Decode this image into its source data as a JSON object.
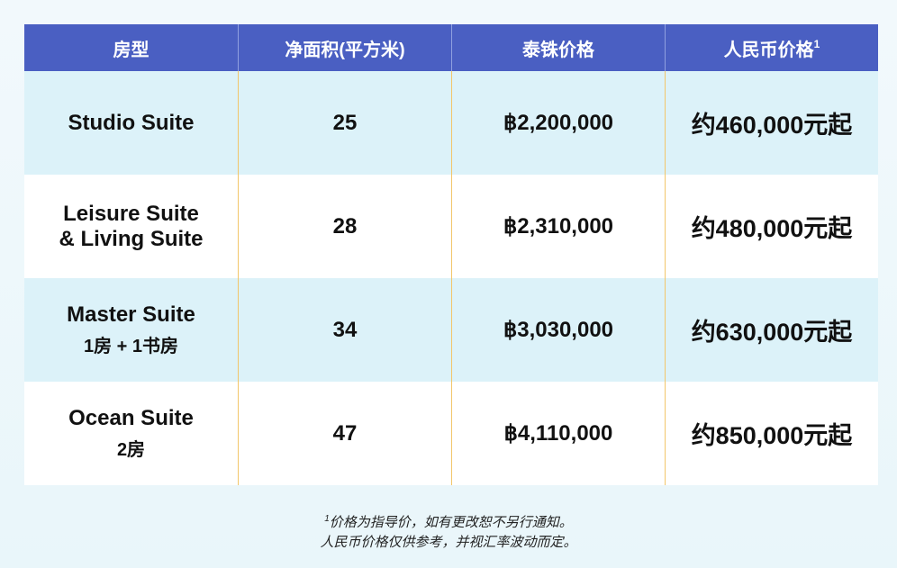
{
  "table": {
    "header": [
      {
        "text": "房型"
      },
      {
        "text": "净面积(平方米)"
      },
      {
        "text": "泰铢价格"
      },
      {
        "text": "人民币价格",
        "note": "1"
      }
    ],
    "rows": [
      [
        [
          "Studio Suite"
        ],
        "25",
        "฿2,200,000",
        "约460,000元起"
      ],
      [
        [
          "Leisure Suite",
          "& Living Suite"
        ],
        "28",
        "฿2,310,000",
        "约480,000元起"
      ],
      [
        [
          "Master Suite",
          "1房 + 1书房"
        ],
        "34",
        "฿3,030,000",
        "约630,000元起"
      ],
      [
        [
          "Ocean Suite",
          "2房"
        ],
        "47",
        "฿4,110,000",
        "约850,000元起"
      ]
    ]
  },
  "footnote": {
    "mark": "1",
    "lines": [
      "价格为指导价，如有更改恕不另行通知。",
      "人民币价格仅供参考，并视汇率波动而定。"
    ]
  }
}
